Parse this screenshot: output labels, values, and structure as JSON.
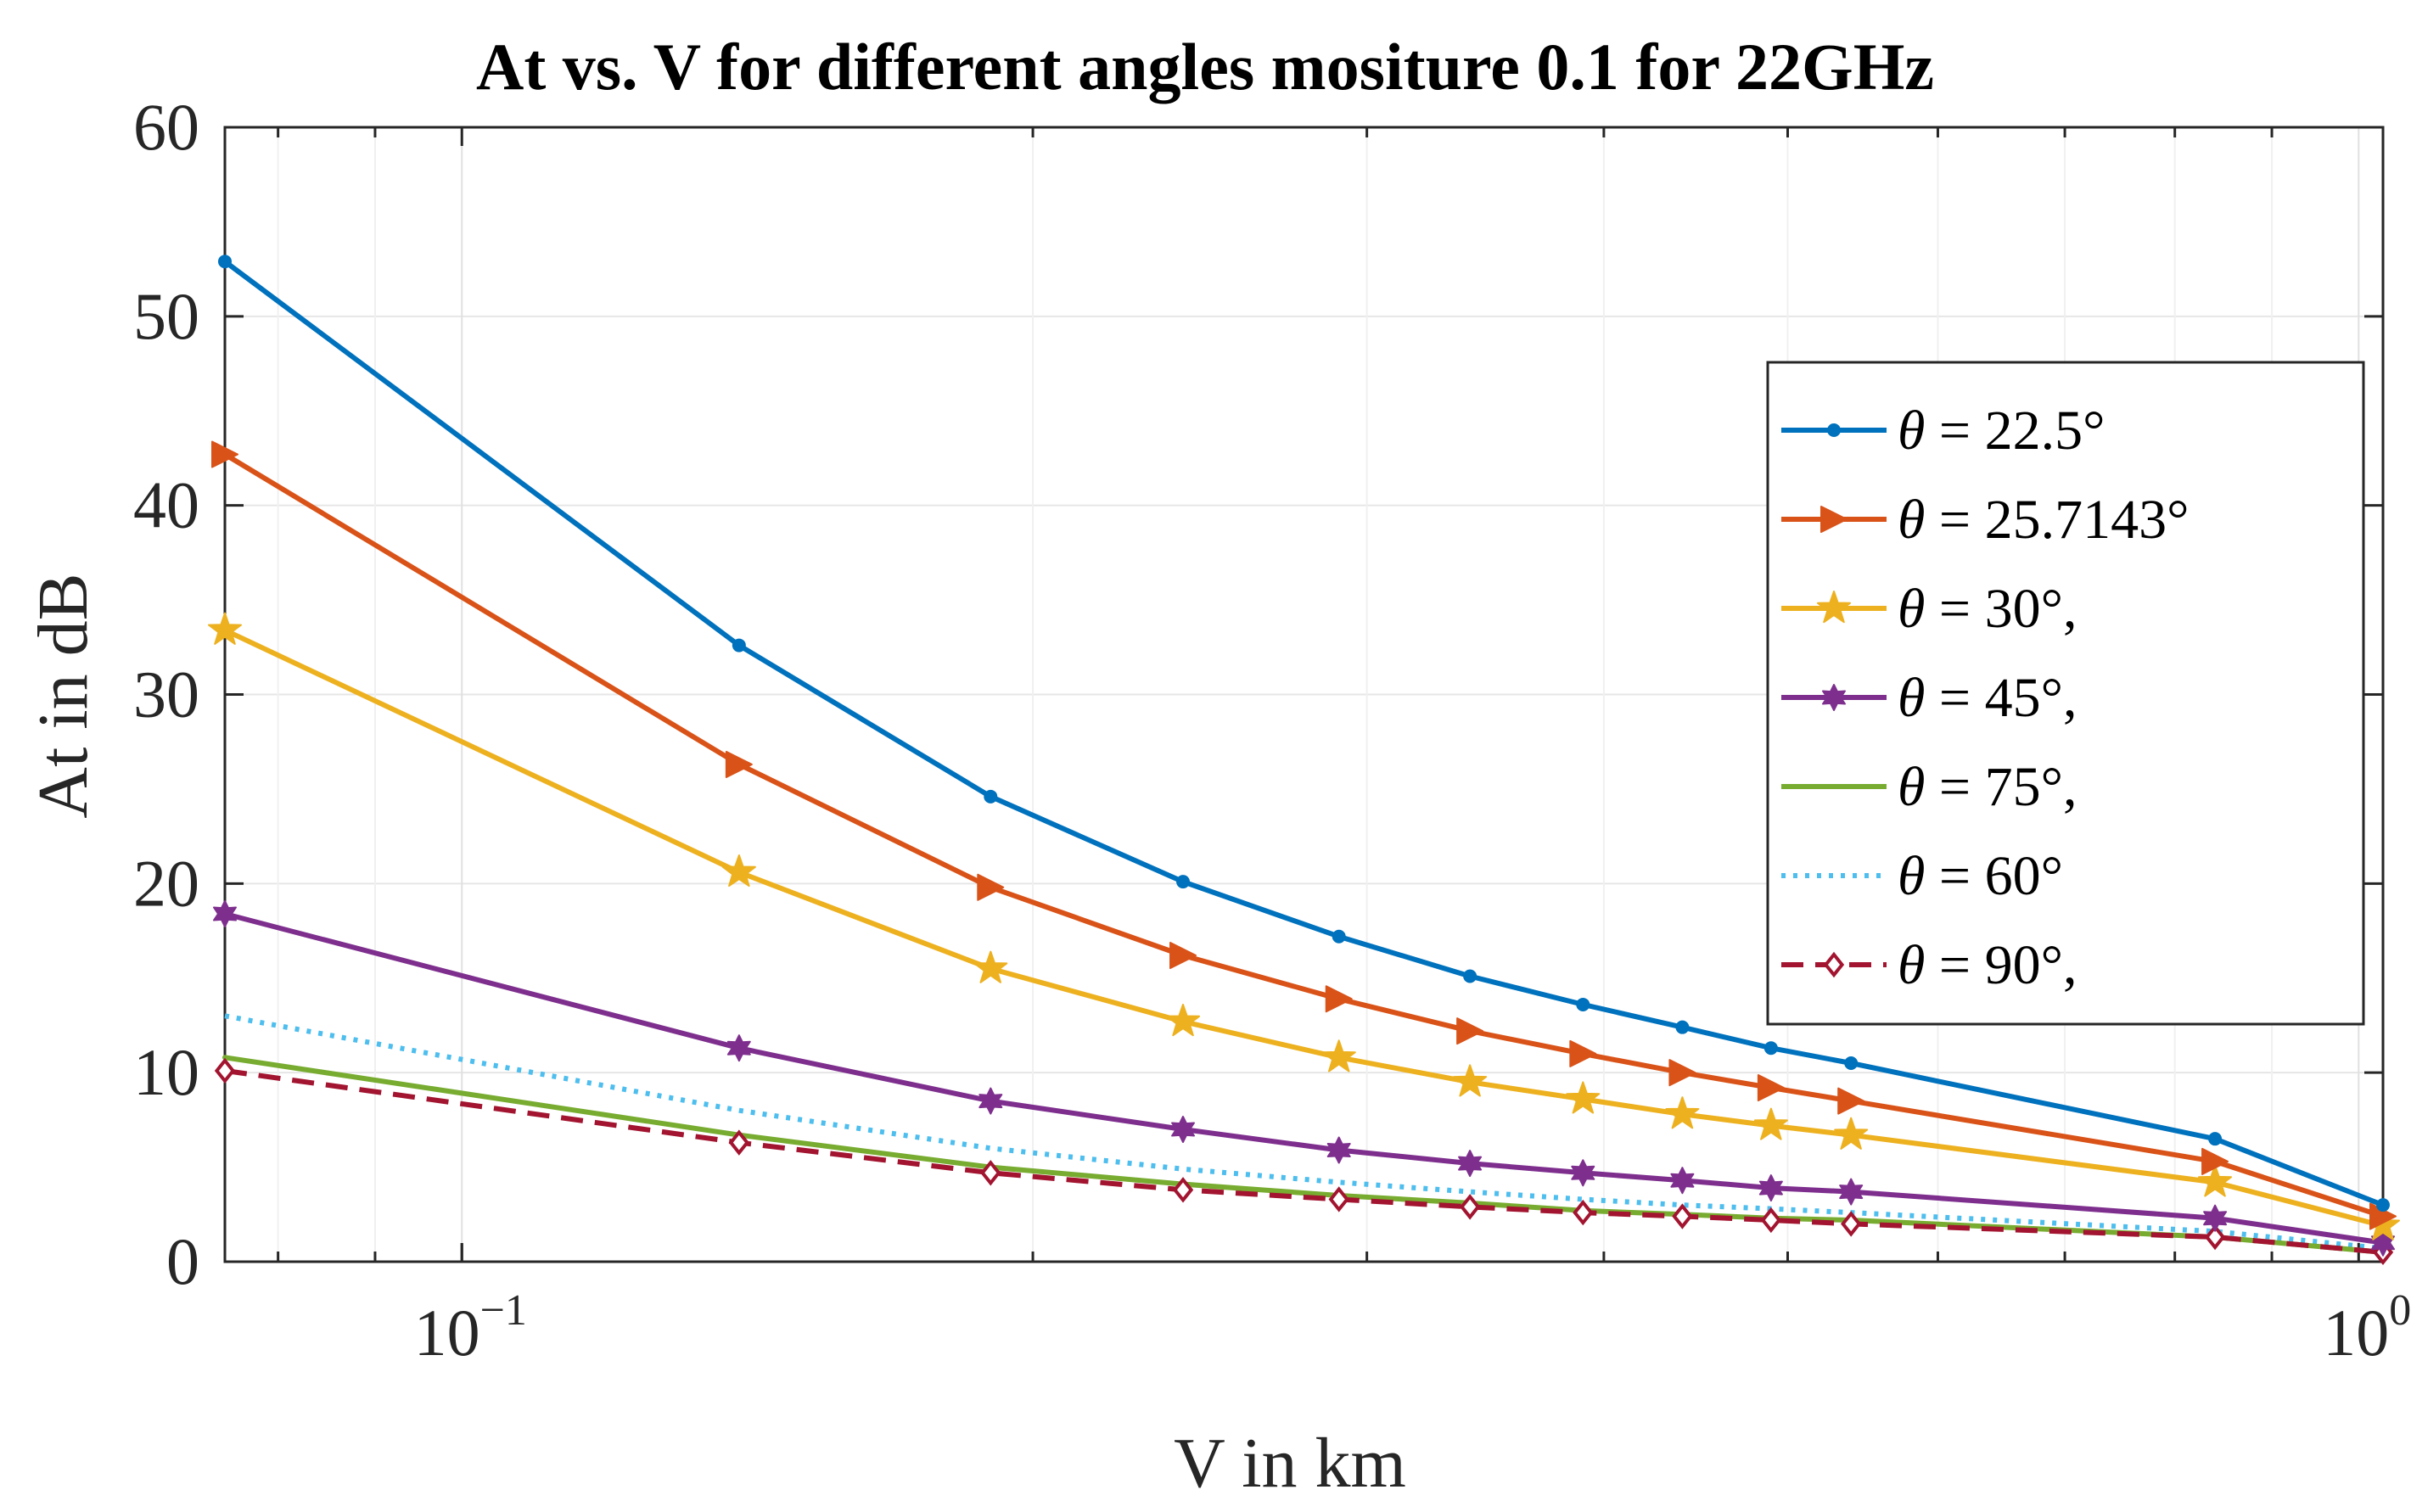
{
  "chart_data": {
    "type": "line",
    "title": "At vs. V for different angles mositure 0.1 for 22GHz",
    "xlabel": "V in km",
    "ylabel": "At in dB",
    "xscale": "log",
    "xlim": [
      0.075,
      1.03
    ],
    "ylim": [
      0,
      60
    ],
    "yticks": [
      0,
      10,
      20,
      30,
      40,
      50,
      60
    ],
    "xticks": [
      {
        "value": 0.1,
        "base": "10",
        "exp": "−1"
      },
      {
        "value": 1.0,
        "base": "10",
        "exp": "0"
      }
    ],
    "grid": true,
    "legend_position": "right",
    "x": [
      0.075,
      0.14,
      0.19,
      0.24,
      0.29,
      0.34,
      0.39,
      0.44,
      0.49,
      0.54,
      0.84,
      1.03
    ],
    "series": [
      {
        "name": "θ = 22.5°",
        "label_var": "θ",
        "label_rest": " = 22.5°",
        "color": "#0072BD",
        "dash": "",
        "marker": "dot",
        "values": [
          52.9,
          32.6,
          24.6,
          20.1,
          17.2,
          15.1,
          13.6,
          12.4,
          11.3,
          10.5,
          6.5,
          3.0
        ],
        "x": [
          0.075,
          0.14,
          0.19,
          0.24,
          0.29,
          0.34,
          0.39,
          0.44,
          0.49,
          0.54,
          0.84,
          1.03
        ]
      },
      {
        "name": "θ = 25.7143°",
        "label_var": "θ",
        "label_rest": " = 25.7143°",
        "color": "#D95319",
        "dash": "",
        "marker": "triangle-right",
        "values": [
          42.7,
          26.3,
          19.8,
          16.2,
          13.9,
          12.2,
          11.0,
          10.0,
          9.2,
          8.5,
          5.3,
          2.4
        ],
        "x": [
          0.075,
          0.14,
          0.19,
          0.24,
          0.29,
          0.34,
          0.39,
          0.44,
          0.49,
          0.54,
          0.84,
          1.03
        ]
      },
      {
        "name": "θ = 30°,",
        "label_var": "θ",
        "label_rest": " = 30°,",
        "color": "#EDB120",
        "dash": "",
        "marker": "star",
        "values": [
          33.4,
          20.6,
          15.5,
          12.7,
          10.8,
          9.5,
          8.6,
          7.8,
          7.2,
          6.7,
          4.2,
          1.9
        ],
        "x": [
          0.075,
          0.14,
          0.19,
          0.24,
          0.29,
          0.34,
          0.39,
          0.44,
          0.49,
          0.54,
          0.84,
          1.03
        ]
      },
      {
        "name": "θ = 45°,",
        "label_var": "θ",
        "label_rest": " = 45°,",
        "color": "#7E2F8E",
        "dash": "",
        "marker": "hexagram",
        "values": [
          18.4,
          11.3,
          8.5,
          7.0,
          5.9,
          5.2,
          4.7,
          4.3,
          3.9,
          3.7,
          2.3,
          1.0
        ],
        "x": [
          0.075,
          0.14,
          0.19,
          0.24,
          0.29,
          0.34,
          0.39,
          0.44,
          0.49,
          0.54,
          0.84,
          1.03
        ]
      },
      {
        "name": "θ = 75°,",
        "label_var": "θ",
        "label_rest": " = 75°,",
        "color": "#77AC30",
        "dash": "",
        "marker": "none",
        "values": [
          10.8,
          6.7,
          5.0,
          4.1,
          3.5,
          3.1,
          2.7,
          2.5,
          2.3,
          2.2,
          1.3,
          0.5
        ],
        "x": [
          0.075,
          0.14,
          0.19,
          0.24,
          0.29,
          0.34,
          0.39,
          0.44,
          0.49,
          0.54,
          0.84,
          1.03
        ]
      },
      {
        "name": "θ = 60°",
        "label_var": "θ",
        "label_rest": " = 60°",
        "color": "#4DBEEE",
        "dash": "5 9",
        "marker": "none",
        "values": [
          13.0,
          8.0,
          6.0,
          4.9,
          4.2,
          3.7,
          3.3,
          3.0,
          2.8,
          2.6,
          1.6,
          0.7
        ],
        "x": [
          0.075,
          0.14,
          0.19,
          0.24,
          0.29,
          0.34,
          0.39,
          0.44,
          0.49,
          0.54,
          0.84,
          1.03
        ]
      },
      {
        "name": "θ = 90°,",
        "label_var": "θ",
        "label_rest": " = 90°,",
        "color": "#A2142F",
        "dash": "26 14",
        "marker": "diamond",
        "values": [
          10.1,
          6.3,
          4.7,
          3.8,
          3.3,
          2.9,
          2.6,
          2.4,
          2.2,
          2.0,
          1.3,
          0.5
        ],
        "x": [
          0.075,
          0.14,
          0.19,
          0.24,
          0.29,
          0.34,
          0.39,
          0.44,
          0.49,
          0.54,
          0.84,
          1.03
        ]
      }
    ]
  }
}
